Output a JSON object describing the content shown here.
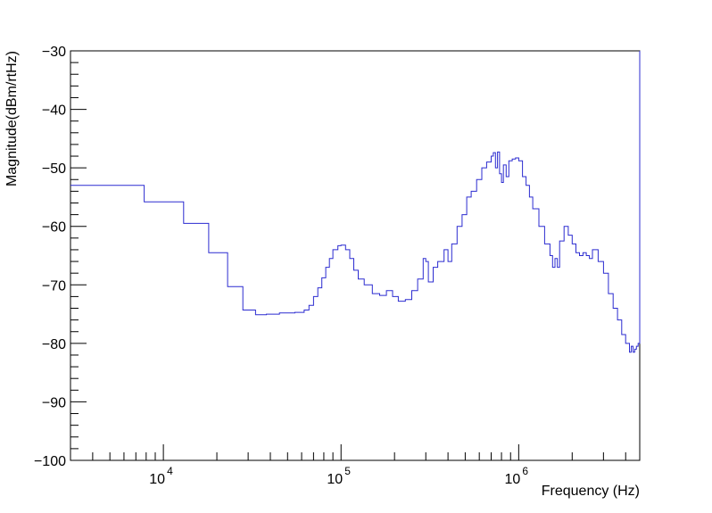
{
  "chart_data": {
    "type": "line",
    "title": "",
    "xlabel": "Frequency (Hz)",
    "ylabel": "Magnitude(dBm/rtHz)",
    "x_scale": "log",
    "xlim": [
      3000,
      4800000
    ],
    "ylim": [
      -100,
      -30
    ],
    "x_ticks": [
      {
        "value": 10000,
        "base": "10",
        "exp": "4"
      },
      {
        "value": 100000,
        "base": "10",
        "exp": "5"
      },
      {
        "value": 1000000,
        "base": "10",
        "exp": "6"
      }
    ],
    "y_ticks": [
      {
        "value": -30,
        "label": "−30"
      },
      {
        "value": -40,
        "label": "−40"
      },
      {
        "value": -50,
        "label": "−50"
      },
      {
        "value": -60,
        "label": "−60"
      },
      {
        "value": -70,
        "label": "−70"
      },
      {
        "value": -80,
        "label": "−80"
      },
      {
        "value": -90,
        "label": "−90"
      },
      {
        "value": -100,
        "label": "−100"
      }
    ],
    "grid": false,
    "series": [
      {
        "color": "#2b2bd0",
        "x": [
          3000,
          7800,
          13000,
          18000,
          23000,
          28000,
          33000,
          38000,
          45000,
          55000,
          62000,
          66000,
          70000,
          74000,
          78000,
          82000,
          86000,
          90000,
          96000,
          100000,
          106000,
          112000,
          118000,
          125000,
          135000,
          150000,
          165000,
          180000,
          195000,
          210000,
          230000,
          250000,
          270000,
          290000,
          300000,
          310000,
          330000,
          350000,
          380000,
          400000,
          420000,
          450000,
          480000,
          510000,
          540000,
          580000,
          620000,
          660000,
          700000,
          720000,
          740000,
          760000,
          780000,
          800000,
          820000,
          850000,
          880000,
          920000,
          960000,
          1000000,
          1050000,
          1100000,
          1150000,
          1200000,
          1300000,
          1400000,
          1500000,
          1550000,
          1600000,
          1650000,
          1700000,
          1800000,
          1900000,
          2000000,
          2100000,
          2200000,
          2300000,
          2400000,
          2500000,
          2600000,
          2800000,
          3000000,
          3200000,
          3400000,
          3600000,
          3800000,
          4000000,
          4200000,
          4300000,
          4400000,
          4500000,
          4600000,
          4700000,
          4800000
        ],
        "values": [
          -53,
          -55.8,
          -59.5,
          -64.5,
          -70.3,
          -74.3,
          -75.1,
          -75.0,
          -74.8,
          -74.7,
          -74.3,
          -73.5,
          -72.0,
          -70.5,
          -68.8,
          -67.0,
          -65.5,
          -64.0,
          -63.3,
          -63.2,
          -64.0,
          -65.5,
          -67.5,
          -69.0,
          -70.0,
          -71.5,
          -71.8,
          -71.0,
          -72.0,
          -72.8,
          -72.5,
          -71.0,
          -69.0,
          -65.5,
          -66.0,
          -69.5,
          -67.0,
          -66.0,
          -64.0,
          -66.0,
          -63.0,
          -60.0,
          -58.0,
          -55.0,
          -54.0,
          -52.0,
          -50.0,
          -49.0,
          -48.0,
          -47.4,
          -50.0,
          -47.3,
          -51.0,
          -52.5,
          -49.5,
          -51.5,
          -48.8,
          -48.5,
          -48.3,
          -48.8,
          -51.5,
          -53.0,
          -55.0,
          -57.0,
          -60.0,
          -63.0,
          -65.0,
          -67.0,
          -65.5,
          -67.0,
          -62.5,
          -60.0,
          -61.5,
          -63.0,
          -64.5,
          -65.0,
          -64.5,
          -65.0,
          -65.5,
          -64.0,
          -66.0,
          -68.0,
          -71.5,
          -74.0,
          -76.0,
          -78.5,
          -80.0,
          -81.5,
          -80.5,
          -81.5,
          -81.0,
          -80.5,
          -80.0,
          -79.5
        ]
      }
    ]
  }
}
